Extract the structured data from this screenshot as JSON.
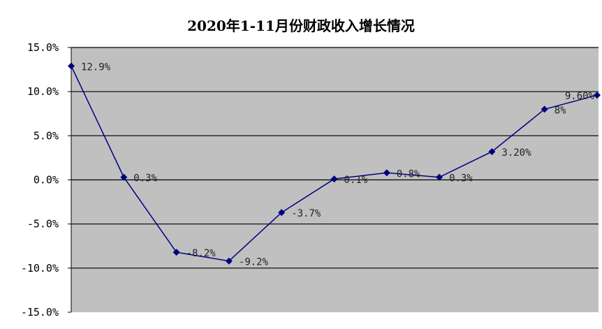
{
  "chart_data": {
    "type": "line",
    "title": "2020年1-11月份财政收入增长情况",
    "xlabel": "",
    "ylabel": "",
    "ylim": [
      -15,
      15
    ],
    "yticks": [
      15,
      10,
      5,
      0,
      -5,
      -10,
      -15
    ],
    "ytick_labels": [
      "15.0%",
      "10.0%",
      "5.0%",
      "0.0%",
      "-5.0%",
      "-10.0%",
      "-15.0%"
    ],
    "grid": "horizontal",
    "legend": "none",
    "colors": {
      "plot_bg": "#c0c0c0",
      "line": "#000080",
      "grid": "#000000"
    },
    "series": [
      {
        "values": [
          12.9,
          0.3,
          -8.2,
          -9.2,
          -3.7,
          0.1,
          0.8,
          0.3,
          3.2,
          8.0,
          9.6
        ],
        "labels": [
          "12.9%",
          "0.3%",
          "-8.2%",
          "-9.2%",
          "-3.7%",
          "0.1%",
          "0.8%",
          "0.3%",
          "3.20%",
          "8%",
          "9.60%"
        ]
      }
    ]
  }
}
